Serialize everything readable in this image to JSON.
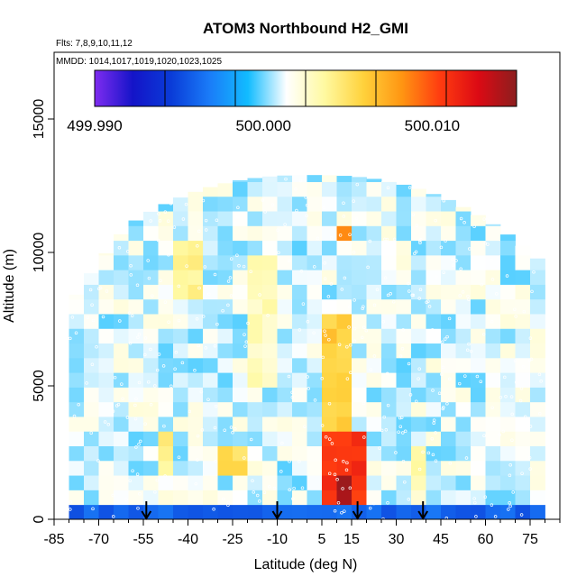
{
  "chart_data": {
    "type": "heatmap",
    "title": "ATOM3 Northbound H2_GMI",
    "annotations": [
      "Flts: 7,8,9,10,11,12",
      "MMDD: 1014,1017,1019,1020,1023,1025"
    ],
    "xlabel": "Latitude (deg N)",
    "ylabel": "Altitude (m)",
    "xlim": [
      -85,
      85
    ],
    "ylim": [
      0,
      17500
    ],
    "x_ticks": [
      -85,
      -70,
      -55,
      -40,
      -25,
      -10,
      5,
      15,
      30,
      45,
      60,
      75
    ],
    "y_ticks": [
      0,
      5000,
      10000,
      15000
    ],
    "colorbar": {
      "range": [
        499.99,
        500.015
      ],
      "tick_values": [
        499.99,
        500.0,
        500.01
      ],
      "tick_labels": [
        "499.990",
        "500.000",
        "500.010"
      ],
      "colors": [
        "#7f2cf0",
        "#1414c8",
        "#0a3cd8",
        "#1a7cf8",
        "#12bcff",
        "#ffffff",
        "#fff9a0",
        "#ffd23c",
        "#ff9612",
        "#ff3c10",
        "#dc0a14",
        "#8c1e1e"
      ]
    },
    "background_value": 500.001,
    "latitude_range": [
      -80,
      79
    ],
    "top_altitude_m": 12900,
    "features": [
      {
        "lat": [
          5,
          22
        ],
        "alt": [
          300,
          3500
        ],
        "value": 500.011
      },
      {
        "lat": [
          9,
          15
        ],
        "alt": [
          600,
          1600
        ],
        "value": 500.014
      },
      {
        "lat": [
          8,
          15
        ],
        "alt": [
          2000,
          3000
        ],
        "value": 500.01
      },
      {
        "lat": [
          5,
          15
        ],
        "alt": [
          3500,
          7800
        ],
        "value": 500.006
      },
      {
        "lat": [
          12,
          17
        ],
        "alt": [
          10500,
          11200
        ],
        "value": 500.008
      },
      {
        "lat": [
          -30,
          -22
        ],
        "alt": [
          1500,
          3000
        ],
        "value": 500.005
      },
      {
        "lat": [
          -52,
          -45
        ],
        "alt": [
          1500,
          3500
        ],
        "value": 500.004
      },
      {
        "lat": [
          -45,
          -35
        ],
        "alt": [
          8500,
          10300
        ],
        "value": 500.004
      },
      {
        "lat": [
          -20,
          -12
        ],
        "alt": [
          5000,
          10000
        ],
        "value": 500.003
      },
      {
        "lat": [
          -11,
          -8
        ],
        "alt": [
          0,
          12000
        ],
        "value": 500.0
      },
      {
        "lat": [
          9,
          28
        ],
        "alt": [
          0,
          800
        ],
        "value": 499.993
      },
      {
        "lat": [
          -80,
          78
        ],
        "alt": [
          0,
          400
        ],
        "value": 499.996
      },
      {
        "lat": [
          37,
          42
        ],
        "alt": [
          500,
          3000
        ],
        "value": 500.003
      },
      {
        "lat": [
          60,
          75
        ],
        "alt": [
          3000,
          6000
        ],
        "value": 500.0015
      }
    ],
    "arrow_latitudes": [
      -54,
      -10,
      17,
      39
    ]
  }
}
